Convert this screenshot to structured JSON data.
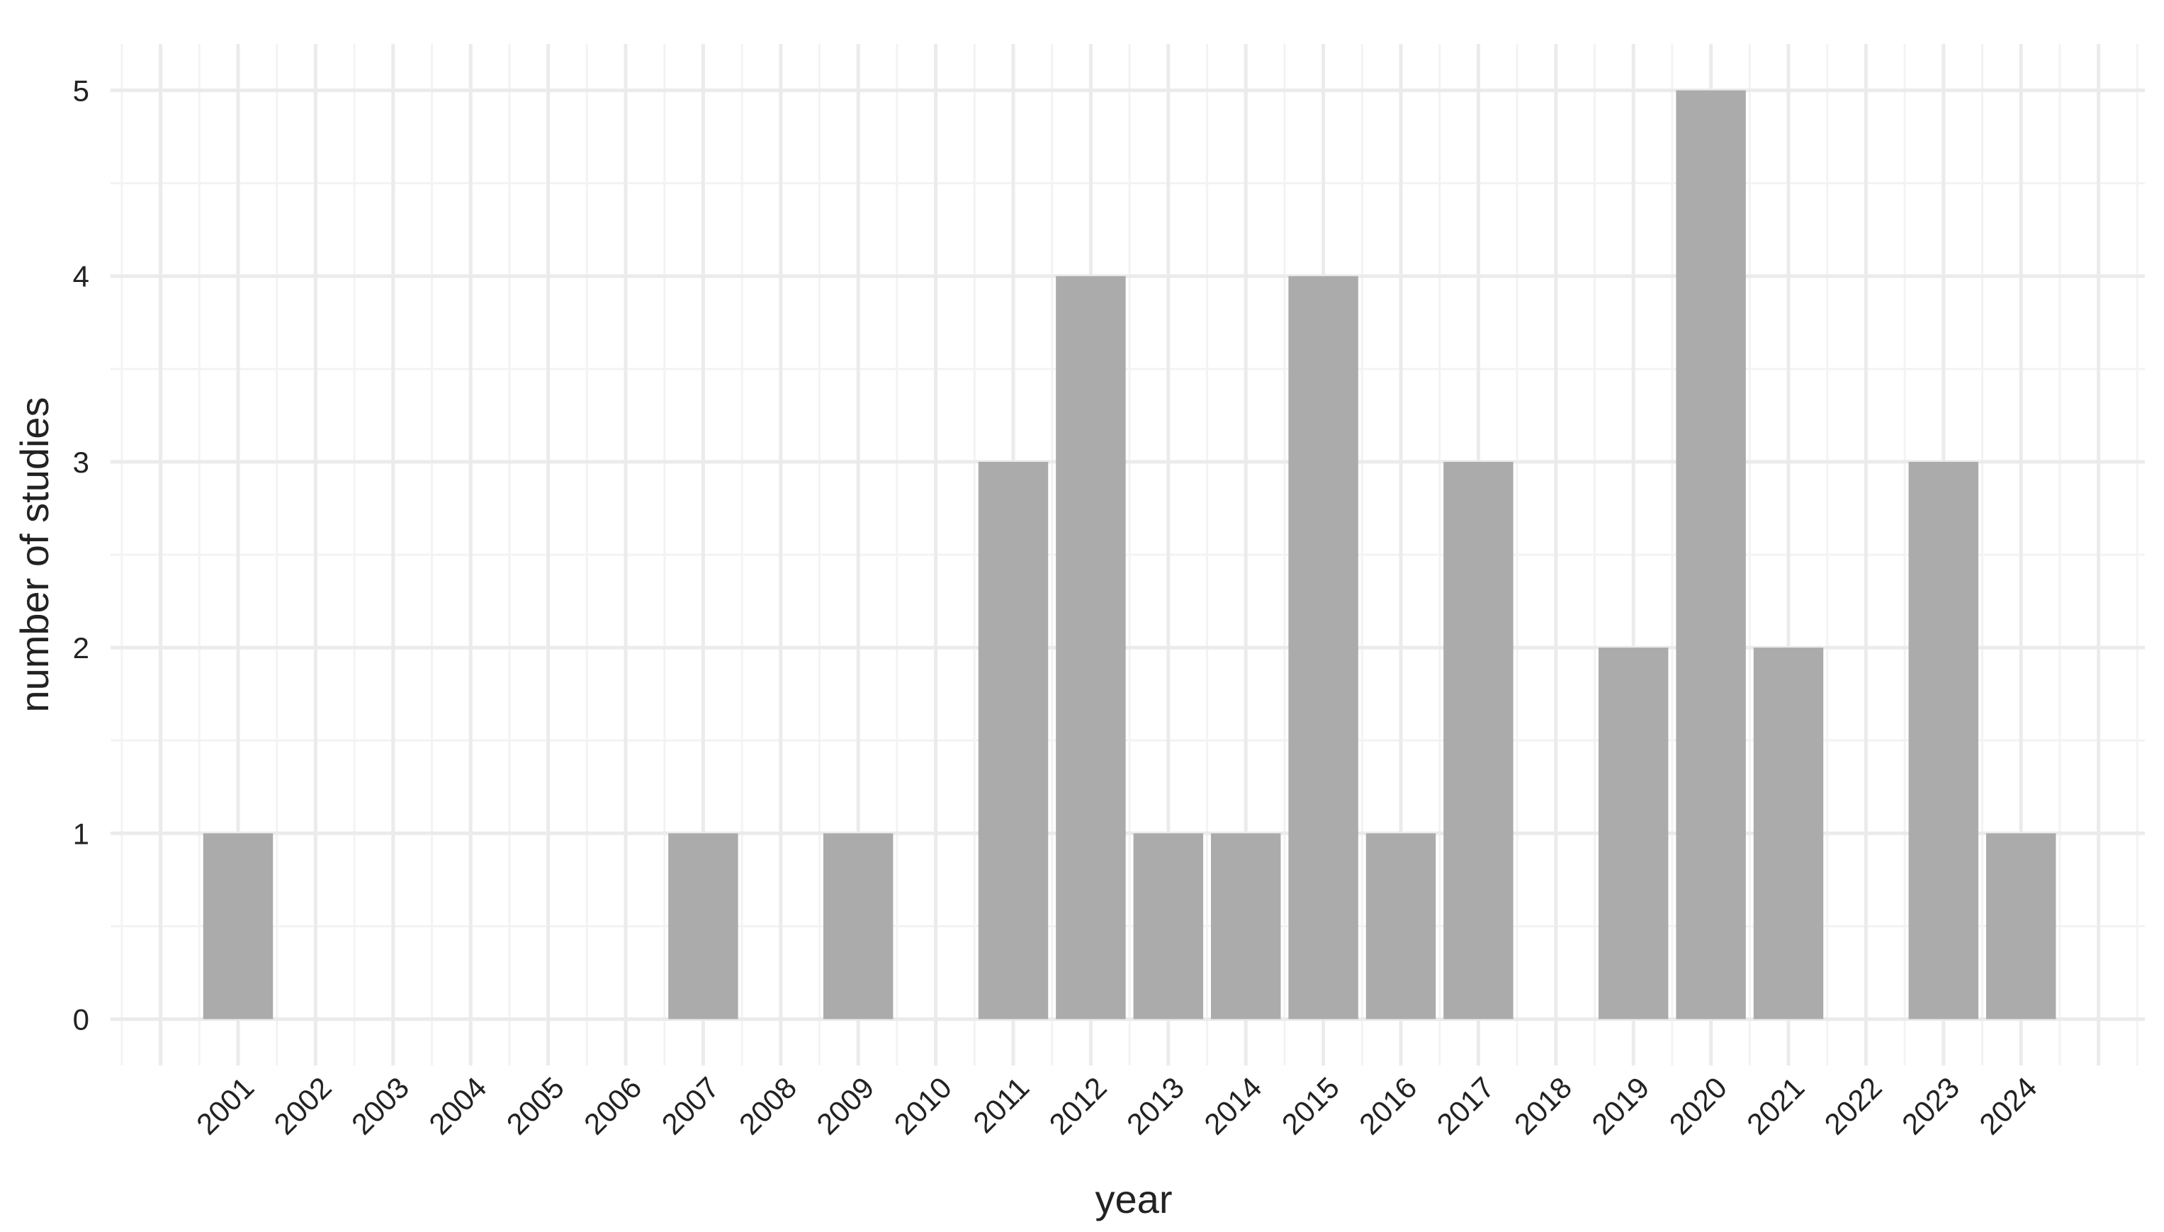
{
  "chart_data": {
    "type": "bar",
    "x_label": "year",
    "y_label": "number of studies",
    "categories": [
      "2001",
      "2002",
      "2003",
      "2004",
      "2005",
      "2006",
      "2007",
      "2008",
      "2009",
      "2010",
      "2011",
      "2012",
      "2013",
      "2014",
      "2015",
      "2016",
      "2017",
      "2018",
      "2019",
      "2020",
      "2021",
      "2022",
      "2023",
      "2024"
    ],
    "values": [
      1,
      0,
      0,
      0,
      0,
      0,
      1,
      0,
      1,
      0,
      3,
      4,
      1,
      1,
      4,
      1,
      3,
      0,
      2,
      5,
      2,
      0,
      3,
      1
    ],
    "color": "#ababab",
    "ylim": [
      -0.25,
      5.25
    ],
    "yticks": [
      0,
      1,
      2,
      3,
      4,
      5
    ],
    "grid": true
  }
}
